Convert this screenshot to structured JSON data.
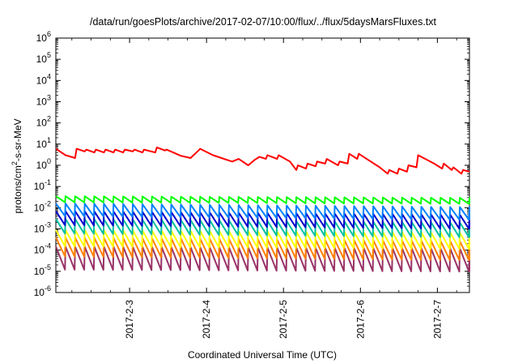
{
  "chart_data": {
    "type": "line",
    "title": "/data/run/goesPlots/archive/2017-02-07/10:00/flux/../flux/5daysMarsFluxes.txt",
    "xlabel": "Coordinated Universal Time (UTC)",
    "ylabel_parts": {
      "main": "protons/cm",
      "sup": "2",
      "rest": "-s-sr-MeV"
    },
    "y_scale": "log",
    "ylim": [
      1e-06,
      1000000.0
    ],
    "xlim": [
      "2017-02-02T01:00",
      "2017-02-07T10:00"
    ],
    "x_ticks": [
      "2017-2-3",
      "2017-2-4",
      "2017-2-5",
      "2017-2-6",
      "2017-2-7"
    ],
    "y_ticks": [
      {
        "base": "10",
        "exp": "-6",
        "value": 1e-06
      },
      {
        "base": "10",
        "exp": "-5",
        "value": 1e-05
      },
      {
        "base": "10",
        "exp": "-4",
        "value": 0.0001
      },
      {
        "base": "10",
        "exp": "-3",
        "value": 0.001
      },
      {
        "base": "10",
        "exp": "-2",
        "value": 0.01
      },
      {
        "base": "10",
        "exp": "-1",
        "value": 0.1
      },
      {
        "base": "10",
        "exp": "0",
        "value": 1
      },
      {
        "base": "10",
        "exp": "1",
        "value": 10
      },
      {
        "base": "10",
        "exp": "2",
        "value": 100
      },
      {
        "base": "10",
        "exp": "3",
        "value": 1000
      },
      {
        "base": "10",
        "exp": "4",
        "value": 10000
      },
      {
        "base": "10",
        "exp": "5",
        "value": 100000
      },
      {
        "base": "10",
        "exp": "6",
        "value": 1000000
      }
    ],
    "grid": false,
    "legend": "none",
    "series": [
      {
        "color": "#ff0000",
        "x": [
          "2017-02-02T01:00",
          "2017-02-02T04:00",
          "2017-02-02T07:00",
          "2017-02-02T07:30",
          "2017-02-02T10:00",
          "2017-02-02T10:30",
          "2017-02-02T13:00",
          "2017-02-02T13:30",
          "2017-02-02T16:00",
          "2017-02-02T16:30",
          "2017-02-02T19:00",
          "2017-02-02T19:30",
          "2017-02-02T22:00",
          "2017-02-02T22:30",
          "2017-02-03T01:00",
          "2017-02-03T01:30",
          "2017-02-03T04:00",
          "2017-02-03T04:30",
          "2017-02-03T08:00",
          "2017-02-03T08:30",
          "2017-02-03T11:00",
          "2017-02-03T11:30",
          "2017-02-03T16:00",
          "2017-02-03T19:00",
          "2017-02-03T21:30",
          "2017-02-03T22:00",
          "2017-02-04T02:00",
          "2017-02-04T08:00",
          "2017-02-04T10:00",
          "2017-02-04T13:00",
          "2017-02-04T15:00",
          "2017-02-04T16:30",
          "2017-02-04T18:30",
          "2017-02-04T19:00",
          "2017-02-04T22:00",
          "2017-02-04T22:30",
          "2017-02-05T02:00",
          "2017-02-05T04:00",
          "2017-02-05T04:30",
          "2017-02-05T07:00",
          "2017-02-05T07:30",
          "2017-02-05T10:00",
          "2017-02-05T10:30",
          "2017-02-05T13:00",
          "2017-02-05T13:30",
          "2017-02-05T17:00",
          "2017-02-05T17:30",
          "2017-02-05T20:00",
          "2017-02-05T20:30",
          "2017-02-05T23:00",
          "2017-02-05T23:30",
          "2017-02-06T06:00",
          "2017-02-06T08:30",
          "2017-02-06T09:00",
          "2017-02-06T11:30",
          "2017-02-06T12:00",
          "2017-02-06T14:30",
          "2017-02-06T15:00",
          "2017-02-06T17:30",
          "2017-02-06T18:00",
          "2017-02-06T23:00",
          "2017-02-07T01:30",
          "2017-02-07T02:00",
          "2017-02-07T04:30",
          "2017-02-07T05:00",
          "2017-02-07T07:30",
          "2017-02-07T08:00",
          "2017-02-07T10:00"
        ],
        "values": [
          6,
          3,
          2.2,
          6,
          4.5,
          5.5,
          4,
          5.5,
          4,
          5.5,
          4,
          5.5,
          4,
          5.5,
          4.5,
          5.5,
          4,
          5.5,
          4,
          7,
          5,
          5.5,
          2.8,
          2.2,
          5,
          6,
          3,
          1.5,
          2,
          1,
          1.8,
          2.5,
          2,
          3,
          2,
          3,
          1.5,
          0.6,
          1,
          0.7,
          1.2,
          0.9,
          1.5,
          1.2,
          2,
          1,
          1.5,
          1.2,
          3.5,
          2,
          3.5,
          0.8,
          0.4,
          0.6,
          0.4,
          0.7,
          0.5,
          1,
          0.8,
          3,
          1.2,
          0.7,
          1.2,
          0.6,
          0.8,
          0.4,
          0.6,
          0.5
        ]
      },
      {
        "color": "#00ff00",
        "x": [
          "2017-02-02T01:00",
          "2017-02-07T10:00"
        ],
        "values": [
          0.03,
          0.025
        ],
        "sawtooth_period_hours": 3,
        "min": 0.018,
        "max": 0.035
      },
      {
        "color": "#0080ff",
        "x": [
          "2017-02-02T01:00",
          "2017-02-07T10:00"
        ],
        "values": [
          0.015,
          0.01
        ],
        "sawtooth_period_hours": 3,
        "min": 0.004,
        "max": 0.016
      },
      {
        "color": "#0000cc",
        "x": [
          "2017-02-02T01:00",
          "2017-02-07T10:00"
        ],
        "values": [
          0.006,
          0.004
        ],
        "sawtooth_period_hours": 3,
        "min": 0.0015,
        "max": 0.007
      },
      {
        "color": "#00c0a0",
        "x": [
          "2017-02-02T01:00",
          "2017-02-07T10:00"
        ],
        "values": [
          0.003,
          0.002
        ],
        "sawtooth_period_hours": 3,
        "min": 0.0006,
        "max": 0.003
      },
      {
        "color": "#ffff00",
        "x": [
          "2017-02-02T01:00",
          "2017-02-07T10:00"
        ],
        "values": [
          0.0008,
          0.0006
        ],
        "sawtooth_period_hours": 3,
        "min": 0.00015,
        "max": 0.0009
      },
      {
        "color": "#ff8000",
        "x": [
          "2017-02-02T01:00",
          "2017-02-07T10:00"
        ],
        "values": [
          0.0003,
          0.0002
        ],
        "sawtooth_period_hours": 3,
        "min": 5e-05,
        "max": 0.0004
      },
      {
        "color": "#993366",
        "x": [
          "2017-02-02T01:00",
          "2017-02-07T10:00"
        ],
        "values": [
          0.0001,
          8e-05
        ],
        "sawtooth_period_hours": 3,
        "min": 1.2e-05,
        "max": 0.00015
      }
    ]
  }
}
